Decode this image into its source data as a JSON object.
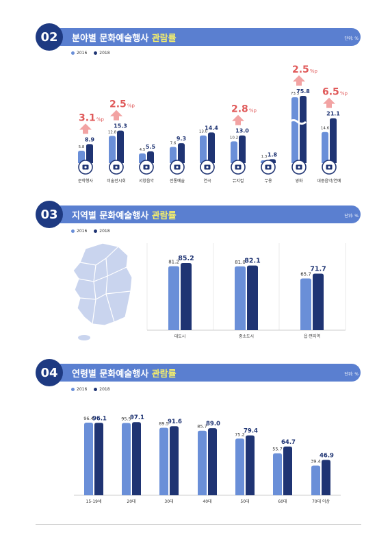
{
  "colors": {
    "y2016": "#6a8fd8",
    "y2018": "#1f3473",
    "accent": "#e05a5a",
    "header": "#5a7fd0",
    "badge": "#1e3a82",
    "highlight": "#f7f06a"
  },
  "legend": {
    "y2016": "2016",
    "y2018": "2018"
  },
  "sections": [
    {
      "num": "02",
      "title_prefix": "분야별 문화예술행사",
      "title_highlight": "관람률",
      "unit": "단위: %"
    },
    {
      "num": "03",
      "title_prefix": "지역별 문화예술행사",
      "title_highlight": "관람률",
      "unit": "단위: %"
    },
    {
      "num": "04",
      "title_prefix": "연령별 문화예술행사",
      "title_highlight": "관람률",
      "unit": "단위: %"
    }
  ],
  "chart_data": [
    {
      "type": "bar",
      "categories": [
        "문학행사",
        "미술전시회",
        "서양음악",
        "전통예술",
        "연극",
        "뮤지컬",
        "무용",
        "영화",
        "대중음악/연예"
      ],
      "icons": [
        "book-icon",
        "picture-icon",
        "piano-icon",
        "fan-icon",
        "mask-icon",
        "eye-mask-icon",
        "shoes-icon",
        "film-icon",
        "speaker-icon"
      ],
      "series": [
        {
          "name": "2016",
          "values": [
            5.8,
            12.8,
            4.5,
            7.6,
            13.0,
            10.2,
            1.3,
            73.3,
            14.6
          ]
        },
        {
          "name": "2018",
          "values": [
            8.9,
            15.3,
            5.5,
            9.3,
            14.4,
            13.0,
            1.8,
            75.8,
            21.1
          ]
        }
      ],
      "labels_2016": [
        "5.8",
        "12.8",
        "4.5",
        "7.6",
        "13.0",
        "10.2",
        "1.3",
        "73.3",
        "14.6"
      ],
      "labels_2018": [
        "8.9",
        "15.3",
        "5.5",
        "9.3",
        "14.4",
        "13.0",
        "1.8",
        "75.8",
        "21.1"
      ],
      "annotations": [
        {
          "category": "문학행사",
          "value": "3.1",
          "unit": "%p"
        },
        {
          "category": "미술전시회",
          "value": "2.5",
          "unit": "%p"
        },
        {
          "category": "뮤지컬",
          "value": "2.8",
          "unit": "%p"
        },
        {
          "category": "영화",
          "value": "2.5",
          "unit": "%p"
        },
        {
          "category": "대중음악/연예",
          "value": "6.5",
          "unit": "%p"
        }
      ],
      "axis_break": "영화"
    },
    {
      "type": "bar",
      "categories": [
        "대도시",
        "중소도시",
        "읍·면지역"
      ],
      "series": [
        {
          "name": "2016",
          "values": [
            81.2,
            81.0,
            65.7
          ]
        },
        {
          "name": "2018",
          "values": [
            85.2,
            82.1,
            71.7
          ]
        }
      ],
      "labels_2016": [
        "81.2",
        "81.0",
        "65.7"
      ],
      "labels_2018": [
        "85.2",
        "82.1",
        "71.7"
      ]
    },
    {
      "type": "bar",
      "categories": [
        "15-19세",
        "20대",
        "30대",
        "40대",
        "50대",
        "60대",
        "70대 이상"
      ],
      "series": [
        {
          "name": "2016",
          "values": [
            96.4,
            95.9,
            89.5,
            85.7,
            75.2,
            55.7,
            39.4
          ]
        },
        {
          "name": "2018",
          "values": [
            96.1,
            97.1,
            91.6,
            89.0,
            79.4,
            64.7,
            46.9
          ]
        }
      ],
      "labels_2016": [
        "96.4",
        "95.9",
        "89.5",
        "85.7",
        "75.2",
        "55.7",
        "39.4"
      ],
      "labels_2018": [
        "96.1",
        "97.1",
        "91.6",
        "89.0",
        "79.4",
        "64.7",
        "46.9"
      ]
    }
  ]
}
